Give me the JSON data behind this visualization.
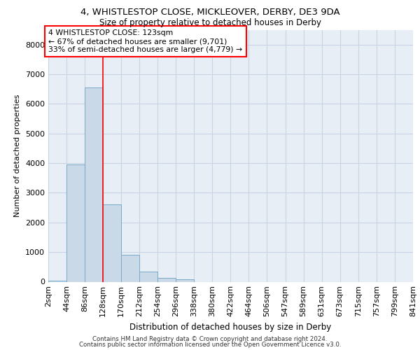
{
  "title1": "4, WHISTLESTOP CLOSE, MICKLEOVER, DERBY, DE3 9DA",
  "title2": "Size of property relative to detached houses in Derby",
  "xlabel": "Distribution of detached houses by size in Derby",
  "ylabel": "Number of detached properties",
  "footer_line1": "Contains HM Land Registry data © Crown copyright and database right 2024.",
  "footer_line2": "Contains public sector information licensed under the Open Government Licence v3.0.",
  "bar_color": "#c9d9e8",
  "bar_edge_color": "#7aaac8",
  "bar_values": [
    30,
    3950,
    6550,
    2600,
    900,
    350,
    120,
    80,
    0,
    0,
    0,
    0,
    0,
    0,
    0,
    0,
    0,
    0,
    0,
    0
  ],
  "x_labels": [
    "2sqm",
    "44sqm",
    "86sqm",
    "128sqm",
    "170sqm",
    "212sqm",
    "254sqm",
    "296sqm",
    "338sqm",
    "380sqm",
    "422sqm",
    "464sqm",
    "506sqm",
    "547sqm",
    "589sqm",
    "631sqm",
    "673sqm",
    "715sqm",
    "757sqm",
    "799sqm",
    "841sqm"
  ],
  "ylim": [
    0,
    8500
  ],
  "yticks": [
    0,
    1000,
    2000,
    3000,
    4000,
    5000,
    6000,
    7000,
    8000
  ],
  "annotation_line1": "4 WHISTLESTOP CLOSE: 123sqm",
  "annotation_line2": "← 67% of detached houses are smaller (9,701)",
  "annotation_line3": "33% of semi-detached houses are larger (4,779) →",
  "grid_color": "#c8d4e4",
  "background_color": "#e8eef5",
  "redline_bar_index": 2,
  "redline_value": 123,
  "bin_size": 42
}
